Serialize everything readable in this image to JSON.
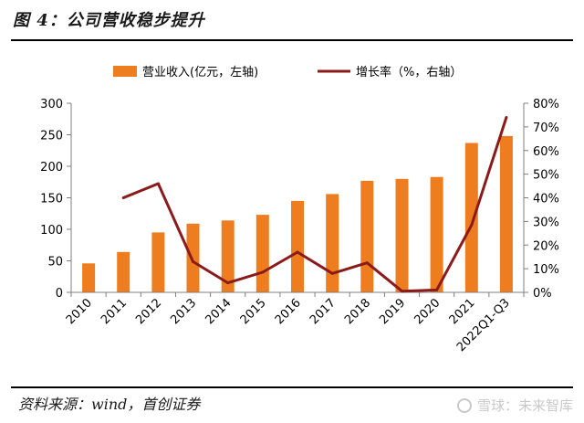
{
  "figure": {
    "title": "图 4：公司营收稳步提升",
    "source": "资料来源：wind，首创证券",
    "watermark": "雪球：未来智库"
  },
  "colors": {
    "bar": "#ED7D1F",
    "line": "#8B1A1A",
    "axis": "#7f7f7f"
  },
  "chart_data": {
    "type": "bar",
    "title": "图 4：公司营收稳步提升",
    "categories": [
      "2010",
      "2011",
      "2012",
      "2013",
      "2014",
      "2015",
      "2016",
      "2017",
      "2018",
      "2019",
      "2020",
      "2021",
      "2022Q1-Q3"
    ],
    "series": [
      {
        "name": "营业收入(亿元，左轴)",
        "type": "bar",
        "axis": "left",
        "values": [
          46,
          64,
          95,
          109,
          114,
          123,
          145,
          156,
          177,
          180,
          183,
          237,
          248
        ]
      },
      {
        "name": "增长率（%，右轴）",
        "type": "line",
        "axis": "right",
        "values": [
          null,
          40,
          46,
          13,
          4,
          8.5,
          17,
          8,
          12.5,
          0.5,
          1,
          28.5,
          74
        ]
      }
    ],
    "y_left": {
      "min": 0,
      "max": 300,
      "step": 50,
      "ticks": [
        "0",
        "50",
        "100",
        "150",
        "200",
        "250",
        "300"
      ]
    },
    "y_right": {
      "min": 0,
      "max": 80,
      "step": 10,
      "ticks": [
        "0%",
        "10%",
        "20%",
        "30%",
        "40%",
        "50%",
        "60%",
        "70%",
        "80%"
      ]
    },
    "legend": {
      "placement": "top-center"
    },
    "grid": false
  }
}
